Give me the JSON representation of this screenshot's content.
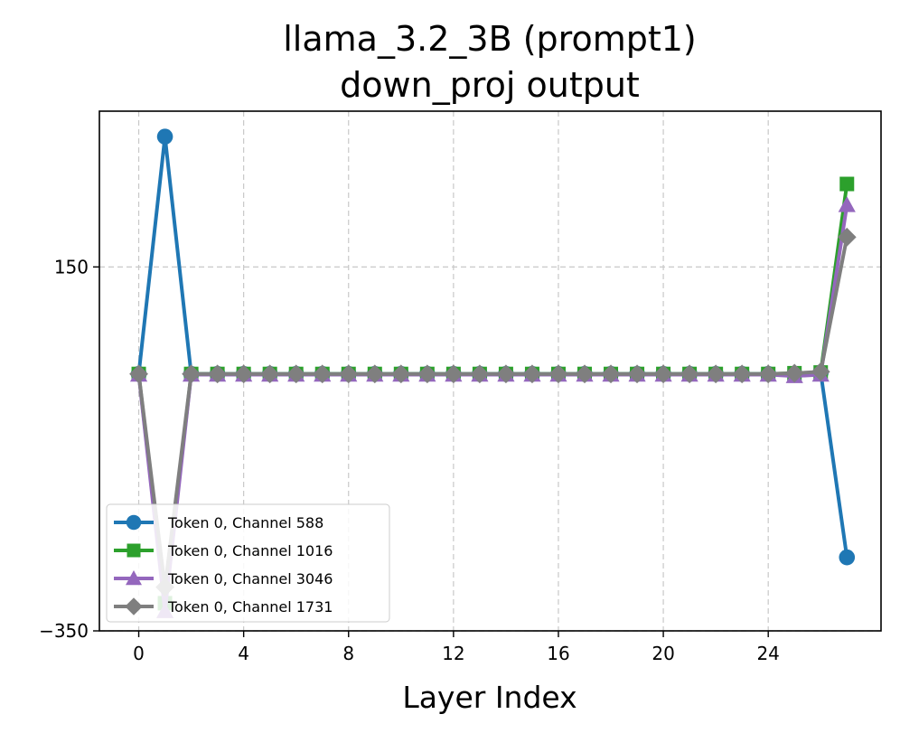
{
  "chart_data": {
    "type": "line",
    "title_line1": "llama_3.2_3B (prompt1)",
    "title_line2": "down_proj output",
    "xlabel": "Layer Index",
    "ylabel": "",
    "xlim": [
      -1.5,
      28.3
    ],
    "ylim": [
      -350,
      364
    ],
    "xticks": [
      0,
      4,
      8,
      12,
      16,
      20,
      24
    ],
    "yticks": [
      150,
      -350
    ],
    "xtick_labels": [
      "0",
      "4",
      "8",
      "12",
      "16",
      "20",
      "24"
    ],
    "ytick_labels": [
      "150",
      "−350"
    ],
    "grid": true,
    "legend_position": "lower-left",
    "x": [
      0,
      1,
      2,
      3,
      4,
      5,
      6,
      7,
      8,
      9,
      10,
      11,
      12,
      13,
      14,
      15,
      16,
      17,
      18,
      19,
      20,
      21,
      22,
      23,
      24,
      25,
      26,
      27
    ],
    "series": [
      {
        "name": "Token 0, Channel 588",
        "color": "#1f77b4",
        "marker": "circle",
        "values": [
          3,
          329,
          3,
          3,
          3,
          3,
          3,
          3,
          3,
          3,
          3,
          3,
          3,
          3,
          3,
          3,
          3,
          3,
          3,
          3,
          3,
          3,
          3,
          3,
          3,
          3,
          5,
          -249
        ]
      },
      {
        "name": "Token 0, Channel 1016",
        "color": "#2ca02c",
        "marker": "square",
        "values": [
          3,
          -312,
          3,
          3,
          3,
          3,
          3,
          3,
          3,
          3,
          3,
          3,
          3,
          3,
          3,
          3,
          3,
          3,
          3,
          3,
          3,
          3,
          3,
          3,
          3,
          4,
          5,
          264
        ]
      },
      {
        "name": "Token 0, Channel 3046",
        "color": "#9467bd",
        "marker": "triangle",
        "values": [
          2,
          -323,
          2,
          2,
          2,
          2,
          2,
          2,
          2,
          2,
          2,
          2,
          2,
          2,
          2,
          2,
          2,
          2,
          2,
          2,
          2,
          2,
          2,
          2,
          2,
          0,
          2,
          235
        ]
      },
      {
        "name": "Token 0, Channel 1731",
        "color": "#7f7f7f",
        "marker": "diamond",
        "values": [
          3,
          -290,
          3,
          3,
          3,
          3,
          3,
          3,
          3,
          3,
          3,
          3,
          3,
          3,
          3,
          3,
          3,
          3,
          3,
          3,
          3,
          3,
          3,
          3,
          3,
          4,
          6,
          191
        ]
      }
    ]
  }
}
